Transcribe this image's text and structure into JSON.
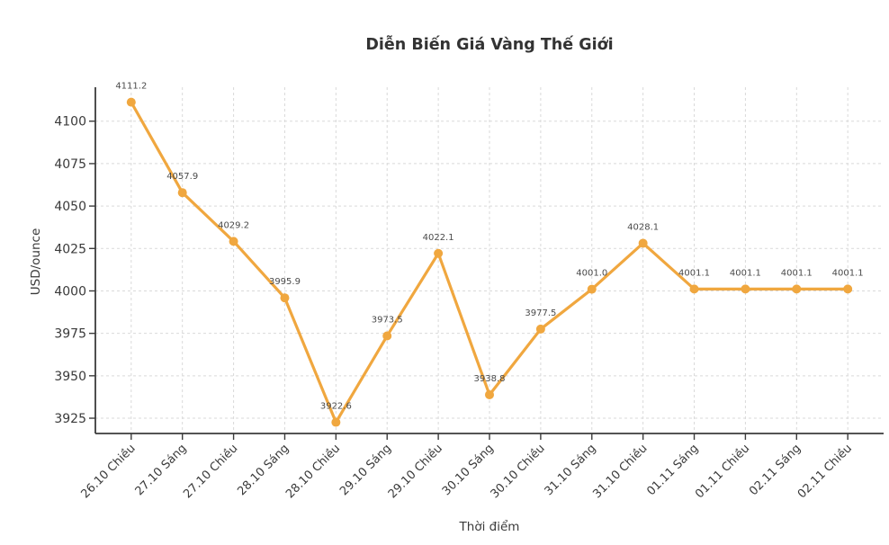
{
  "title": "Diễn Biến Giá Vàng Thế Giới",
  "chart_data": {
    "type": "line",
    "title": "Diễn Biến Giá Vàng Thế Giới",
    "xlabel": "Thời điểm",
    "ylabel": "USD/ounce",
    "categories": [
      "26.10 Chiều",
      "27.10 Sáng",
      "27.10 Chiều",
      "28.10 Sáng",
      "28.10 Chiều",
      "29.10 Sáng",
      "29.10 Chiều",
      "30.10 Sáng",
      "30.10 Chiều",
      "31.10 Sáng",
      "31.10 Chiều",
      "01.11 Sáng",
      "01.11 Chiều",
      "02.11 Sáng",
      "02.11 Chiều"
    ],
    "values": [
      4111.2,
      4057.9,
      4029.2,
      3995.9,
      3922.6,
      3973.5,
      4022.1,
      3938.8,
      3977.5,
      4001.0,
      4028.1,
      4001.1,
      4001.1,
      4001.1,
      4001.1
    ],
    "value_label_decimals": 1,
    "yticks": [
      3925,
      3950,
      3975,
      4000,
      4025,
      4050,
      4075,
      4100
    ],
    "ylim": [
      3916,
      4120
    ],
    "grid": true,
    "grid_style": "dashed",
    "legend_position": "none",
    "line_color": "#F0A73F",
    "marker": "circle",
    "title_color": "#333333",
    "tick_color": "#3a3a3a",
    "data_label_color": "#4a4a4a",
    "grid_color": "#d9d9d9",
    "spine_color": "#3b3b3b",
    "background_color": "#ffffff"
  }
}
